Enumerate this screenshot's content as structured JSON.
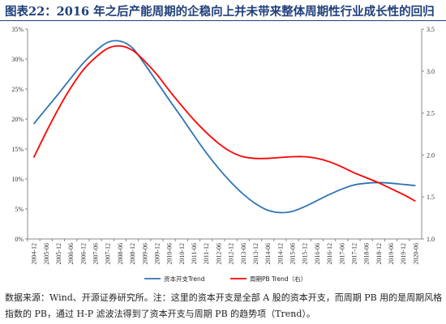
{
  "figure": {
    "title": "图表22：2016 年之后产能周期的企稳向上并未带来整体周期性行业成长性的回归",
    "source_note": "数据来源：Wind、开源证券研究所。注：这里的资本开支是全部 A 股的资本开支，而周期 PB 用的是周期风格指数的 PB，通过 H-P 滤波法得到了资本开支与周期 PB 的趋势项（Trend）。"
  },
  "chart_data": {
    "type": "line",
    "categories": [
      "2004-12",
      "2005-06",
      "2005-12",
      "2006-06",
      "2006-12",
      "2007-06",
      "2007-12",
      "2008-06",
      "2008-12",
      "2009-06",
      "2009-12",
      "2010-06",
      "2010-12",
      "2011-06",
      "2011-12",
      "2012-06",
      "2012-12",
      "2013-06",
      "2013-12",
      "2014-06",
      "2014-12",
      "2015-06",
      "2015-12",
      "2016-06",
      "2016-12",
      "2017-06",
      "2017-12",
      "2018-06",
      "2018-12",
      "2019-06",
      "2019-12",
      "2020-06"
    ],
    "y_left": {
      "ticks": [
        "0%",
        "5%",
        "10%",
        "15%",
        "20%",
        "25%",
        "30%",
        "35%"
      ],
      "range": [
        0,
        35
      ]
    },
    "y_right": {
      "ticks": [
        "1.0",
        "1.5",
        "2.0",
        "2.5",
        "3.0",
        "3.5"
      ],
      "range": [
        1.0,
        3.5
      ]
    },
    "grid": false,
    "legend_position": "bottom",
    "series": [
      {
        "name": "资本开支Trend",
        "axis": "left",
        "color": "#2e75b6",
        "values": [
          19.2,
          21.7,
          24.2,
          26.8,
          29.3,
          31.3,
          32.8,
          33.0,
          31.9,
          29.2,
          26.2,
          23.2,
          20.3,
          17.3,
          14.4,
          11.8,
          9.5,
          7.5,
          5.9,
          4.8,
          4.4,
          4.6,
          5.4,
          6.4,
          7.4,
          8.3,
          9.0,
          9.3,
          9.4,
          9.3,
          9.1,
          8.9
        ]
      },
      {
        "name": "周期PB Trend（右）",
        "axis": "right",
        "color": "#ff0000",
        "values": [
          1.97,
          2.27,
          2.55,
          2.8,
          3.01,
          3.16,
          3.27,
          3.3,
          3.25,
          3.12,
          2.96,
          2.77,
          2.59,
          2.42,
          2.27,
          2.14,
          2.04,
          1.98,
          1.96,
          1.96,
          1.97,
          1.98,
          1.98,
          1.96,
          1.92,
          1.86,
          1.79,
          1.73,
          1.67,
          1.6,
          1.53,
          1.45
        ]
      }
    ]
  }
}
